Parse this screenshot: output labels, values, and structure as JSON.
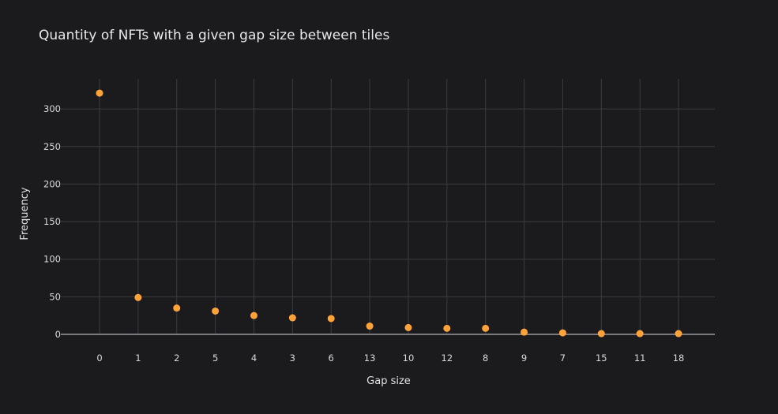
{
  "chart_data": {
    "type": "scatter",
    "title": "Quantity of NFTs with a given gap size between tiles",
    "xlabel": "Gap size",
    "ylabel": "Frequency",
    "categories": [
      "0",
      "1",
      "2",
      "5",
      "4",
      "3",
      "6",
      "13",
      "10",
      "12",
      "8",
      "9",
      "7",
      "15",
      "11",
      "18"
    ],
    "series": [
      {
        "values": [
          321,
          49,
          35,
          31,
          25,
          22,
          21,
          11,
          9,
          8,
          8,
          3,
          2,
          1,
          1,
          1
        ]
      }
    ],
    "ylim": [
      0,
      340
    ],
    "y_ticks": [
      0,
      50,
      100,
      150,
      200,
      250,
      300
    ],
    "grid": true,
    "colors": {
      "background": "#1b1b1d",
      "grid": "#3c3c40",
      "zero_line": "#7a7a7e",
      "marker": "#ffa338",
      "text": "#e0e0e0"
    }
  }
}
